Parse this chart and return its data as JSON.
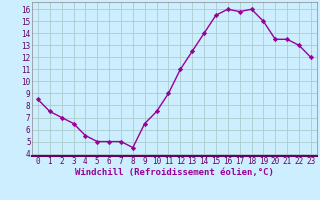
{
  "x": [
    0,
    1,
    2,
    3,
    4,
    5,
    6,
    7,
    8,
    9,
    10,
    11,
    12,
    13,
    14,
    15,
    16,
    17,
    18,
    19,
    20,
    21,
    22,
    23
  ],
  "y": [
    8.5,
    7.5,
    7.0,
    6.5,
    5.5,
    5.0,
    5.0,
    5.0,
    4.5,
    6.5,
    7.5,
    9.0,
    11.0,
    12.5,
    14.0,
    15.5,
    16.0,
    15.8,
    16.0,
    15.0,
    13.5,
    13.5,
    13.0,
    12.0
  ],
  "line_color": "#990099",
  "marker": "D",
  "markersize": 2.2,
  "linewidth": 1.0,
  "bg_color": "#cceeff",
  "grid_color": "#aacccc",
  "xlabel": "Windchill (Refroidissement éolien,°C)",
  "ylabel_ticks": [
    4,
    5,
    6,
    7,
    8,
    9,
    10,
    11,
    12,
    13,
    14,
    15,
    16
  ],
  "xlim": [
    -0.5,
    23.5
  ],
  "ylim": [
    3.8,
    16.6
  ],
  "xticks": [
    0,
    1,
    2,
    3,
    4,
    5,
    6,
    7,
    8,
    9,
    10,
    11,
    12,
    13,
    14,
    15,
    16,
    17,
    18,
    19,
    20,
    21,
    22,
    23
  ],
  "tick_fontsize": 5.5,
  "xlabel_fontsize": 6.5,
  "spine_color": "#888888"
}
